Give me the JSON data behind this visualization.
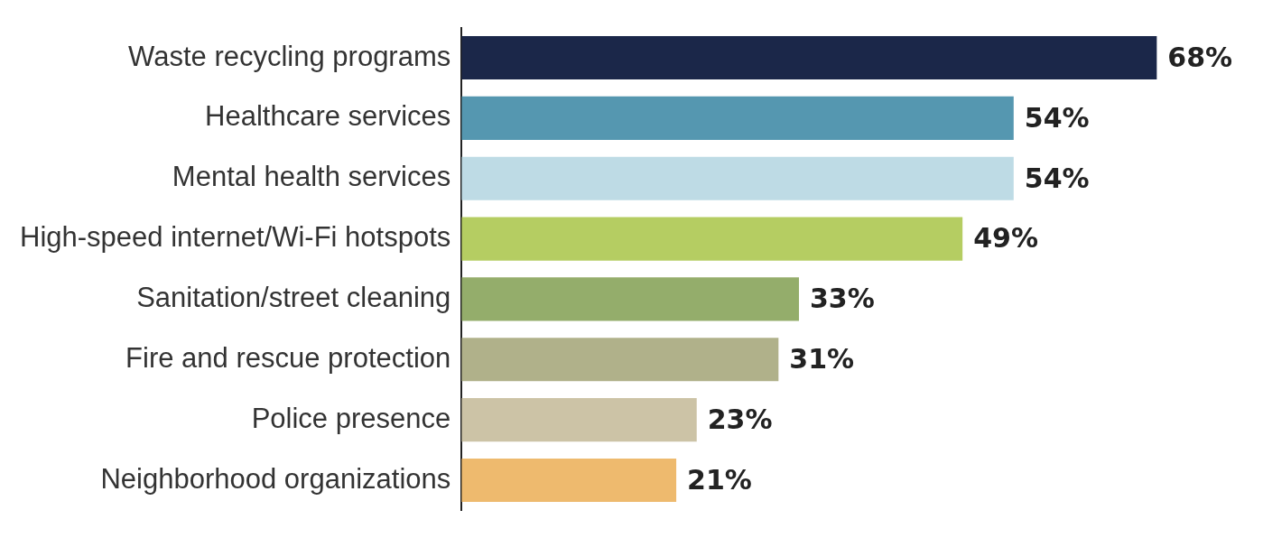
{
  "chart_data": {
    "type": "bar",
    "orientation": "horizontal",
    "categories": [
      "Waste recycling programs",
      "Healthcare services",
      "Mental health services",
      "High-speed internet/Wi-Fi hotspots",
      "Sanitation/street cleaning",
      "Fire and rescue protection",
      "Police presence",
      "Neighborhood organizations"
    ],
    "values": [
      68,
      54,
      54,
      49,
      33,
      31,
      23,
      21
    ],
    "colors": [
      "#1b2749",
      "#5597b0",
      "#bedbe5",
      "#b5cd62",
      "#94ad6b",
      "#b0b18a",
      "#ccc3a6",
      "#eeba6e"
    ],
    "value_labels": [
      "68%",
      "54%",
      "54%",
      "49%",
      "33%",
      "31%",
      "23%",
      "21%"
    ]
  }
}
